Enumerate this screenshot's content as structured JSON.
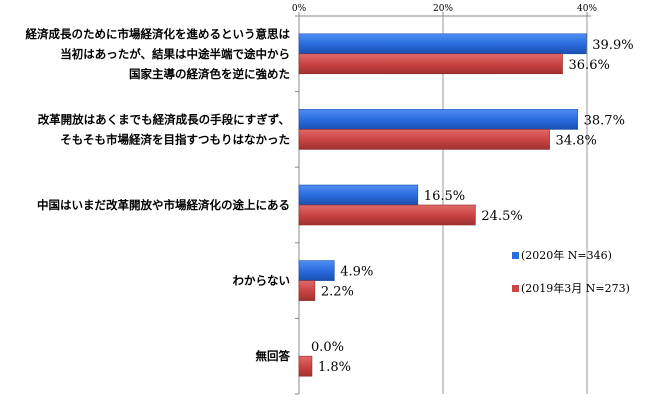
{
  "chart_data": {
    "type": "bar",
    "orientation": "horizontal",
    "title": "",
    "xlabel": "",
    "ylabel": "",
    "xlim": [
      0,
      40
    ],
    "x_ticks": [
      "0%",
      "20%",
      "40%"
    ],
    "x_tick_values": [
      0,
      20,
      40
    ],
    "tick_position": "top",
    "grid": true,
    "legend_position": "right",
    "categories": [
      [
        "経済成長のために市場経済化を進めるという意思は",
        "当初はあったが、結果は中途半端で途中から",
        "国家主導の経済色を逆に強めた"
      ],
      [
        "改革開放はあくまでも経済成長の手段にすぎず、",
        "そもそも市場経済を目指すつもりはなかった"
      ],
      [
        "中国はいまだ改革開放や市場経済化の途上にある"
      ],
      [
        "わからない"
      ],
      [
        "無回答"
      ]
    ],
    "series": [
      {
        "name": "(2020年 N=346)",
        "color": "#2a6de0",
        "values": [
          39.9,
          38.7,
          16.5,
          4.9,
          0.0
        ],
        "labels": [
          "39.9%",
          "38.7%",
          "16.5%",
          "4.9%",
          "0.0%"
        ]
      },
      {
        "name": "(2019年3月 N=273)",
        "color": "#cc4444",
        "values": [
          36.6,
          34.8,
          24.5,
          2.2,
          1.8
        ],
        "labels": [
          "36.6%",
          "34.8%",
          "24.5%",
          "2.2%",
          "1.8%"
        ]
      }
    ]
  }
}
